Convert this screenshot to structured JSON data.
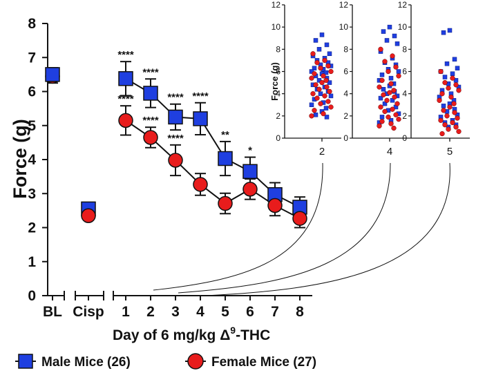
{
  "colors": {
    "male": "#1f3fe0",
    "female": "#e81c1c",
    "axis": "#111111"
  },
  "chart_data": [
    {
      "type": "line",
      "ylabel": "Force (g)",
      "xlabel_main": "Day of 6 mg/kg Δ",
      "xlabel_sup": "9",
      "xlabel_tail": "-THC",
      "ylim": [
        0,
        8
      ],
      "yticks": [
        "0",
        "1",
        "2",
        "3",
        "4",
        "5",
        "6",
        "7",
        "8"
      ],
      "categories": [
        "BL",
        "Cisp",
        "1",
        "2",
        "3",
        "4",
        "5",
        "6",
        "7",
        "8"
      ],
      "series": [
        {
          "name": "Male Mice (26)",
          "marker": "square",
          "values": [
            6.5,
            2.55,
            6.38,
            5.95,
            5.25,
            5.2,
            4.03,
            3.65,
            2.97,
            2.6
          ],
          "errors": [
            0.2,
            0.15,
            0.5,
            0.42,
            0.38,
            0.47,
            0.5,
            0.42,
            0.35,
            0.3
          ]
        },
        {
          "name": "Female Mice (27)",
          "marker": "circle",
          "values": [
            6.45,
            2.35,
            5.15,
            4.65,
            3.98,
            3.27,
            2.71,
            3.13,
            2.65,
            2.27
          ],
          "errors": [
            0.2,
            0.12,
            0.43,
            0.3,
            0.45,
            0.32,
            0.3,
            0.3,
            0.3,
            0.27
          ]
        }
      ],
      "male_significance": [
        "",
        "",
        "****",
        "****",
        "****",
        "****",
        "**",
        "*",
        "",
        ""
      ],
      "female_significance": [
        "",
        "",
        "****",
        "****",
        "****",
        "",
        "",
        "",
        "",
        ""
      ],
      "legend": [
        "Male Mice (26)",
        "Female Mice (27)"
      ]
    },
    {
      "type": "scatter",
      "ylabel": "Force (g)",
      "ylim": [
        0,
        12
      ],
      "yticks": [
        "0",
        "2",
        "4",
        "6",
        "8",
        "10",
        "12"
      ],
      "categories": [
        "2",
        "4",
        "5"
      ],
      "panels": [
        {
          "category": "2",
          "male": [
            9.3,
            8.8,
            8.4,
            8.0,
            7.6,
            7.4,
            7.2,
            7.0,
            6.8,
            6.6,
            6.5,
            6.3,
            6.2,
            6.0,
            5.9,
            5.8,
            5.6,
            5.4,
            5.2,
            5.0,
            4.8,
            4.6,
            4.4,
            4.2,
            4.0,
            3.8,
            3.5,
            3.2,
            3.0,
            2.7,
            2.4,
            2.1,
            1.9
          ],
          "female": [
            7.6,
            7.0,
            6.8,
            6.5,
            6.3,
            6.0,
            5.8,
            5.6,
            5.4,
            5.2,
            5.0,
            4.8,
            4.6,
            4.4,
            4.2,
            4.0,
            3.8,
            3.6,
            3.3,
            3.1,
            2.8,
            2.5,
            2.2,
            2.0
          ]
        },
        {
          "category": "4",
          "male": [
            10.0,
            9.6,
            9.2,
            8.8,
            8.5,
            7.8,
            7.2,
            6.8,
            6.6,
            6.2,
            6.0,
            5.7,
            5.4,
            5.2,
            4.9,
            4.7,
            4.4,
            4.2,
            4.0,
            3.8,
            3.6,
            3.4,
            3.1,
            2.8,
            2.5,
            2.2,
            1.9,
            1.6,
            1.4
          ],
          "female": [
            8.0,
            7.4,
            6.9,
            6.4,
            6.0,
            5.6,
            5.2,
            4.9,
            4.6,
            4.3,
            4.1,
            3.9,
            3.7,
            3.4,
            3.1,
            2.8,
            2.6,
            2.4,
            2.1,
            1.9,
            1.7,
            1.5,
            1.3,
            1.1,
            0.9
          ]
        },
        {
          "category": "5",
          "male": [
            9.7,
            9.5,
            7.1,
            6.7,
            6.3,
            6.0,
            5.8,
            5.5,
            5.2,
            4.9,
            4.6,
            4.3,
            4.0,
            3.7,
            3.4,
            3.1,
            2.9,
            2.6,
            2.4,
            2.1,
            1.9,
            1.6,
            1.4,
            1.2,
            1.0
          ],
          "female": [
            6.0,
            5.4,
            5.0,
            4.8,
            4.5,
            4.3,
            4.0,
            3.7,
            3.4,
            3.1,
            2.8,
            2.5,
            2.3,
            2.0,
            1.8,
            1.6,
            1.4,
            1.2,
            1.0,
            0.8,
            0.6,
            0.4
          ]
        }
      ]
    }
  ]
}
